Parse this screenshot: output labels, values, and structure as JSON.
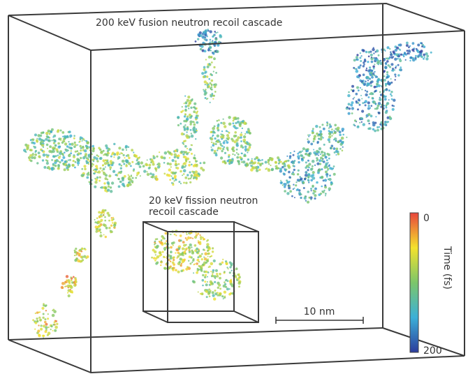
{
  "labels": {
    "main": "200 keV fusion neutron recoil cascade",
    "inset": [
      "20 keV fission neutron",
      "recoil cascade"
    ],
    "scale_bar": "10 nm"
  },
  "colorbar": {
    "title": "Time (fs)",
    "ticks": [
      "0",
      "200"
    ]
  }
}
